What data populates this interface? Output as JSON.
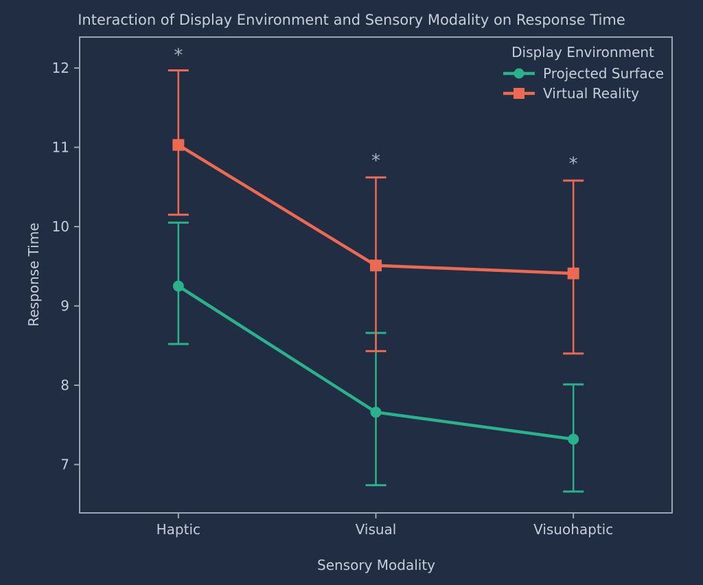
{
  "colors": {
    "background": "#212d42",
    "text": "#c6cedb",
    "axis": "#9aa5b5",
    "annotation": "#aab3c1"
  },
  "chart_data": {
    "type": "line",
    "title": "Interaction of Display Environment and Sensory Modality on Response Time",
    "xlabel": "Sensory Modality",
    "ylabel": "Response Time",
    "categories": [
      "Haptic",
      "Visual",
      "Visuohaptic"
    ],
    "yticks": [
      7,
      8,
      9,
      10,
      11,
      12
    ],
    "ylim": [
      6.39,
      12.39
    ],
    "grid": false,
    "legend": {
      "title": "Display Environment",
      "position": "top-right"
    },
    "series": [
      {
        "name": "Projected Surface",
        "color": "#2ab28c",
        "marker": "circle",
        "values": [
          9.25,
          7.66,
          7.32
        ],
        "err_low": [
          8.52,
          6.74,
          6.66
        ],
        "err_high": [
          10.05,
          8.66,
          8.01
        ]
      },
      {
        "name": "Virtual Reality",
        "color": "#ec6a52",
        "marker": "square",
        "values": [
          11.03,
          9.51,
          9.41
        ],
        "err_low": [
          10.15,
          8.43,
          8.4
        ],
        "err_high": [
          11.97,
          10.62,
          10.58
        ]
      }
    ],
    "annotations": [
      {
        "text": "*",
        "category": "Haptic",
        "y": 12.2
      },
      {
        "text": "*",
        "category": "Visual",
        "y": 10.87
      },
      {
        "text": "*",
        "category": "Visuohaptic",
        "y": 10.83
      }
    ]
  }
}
